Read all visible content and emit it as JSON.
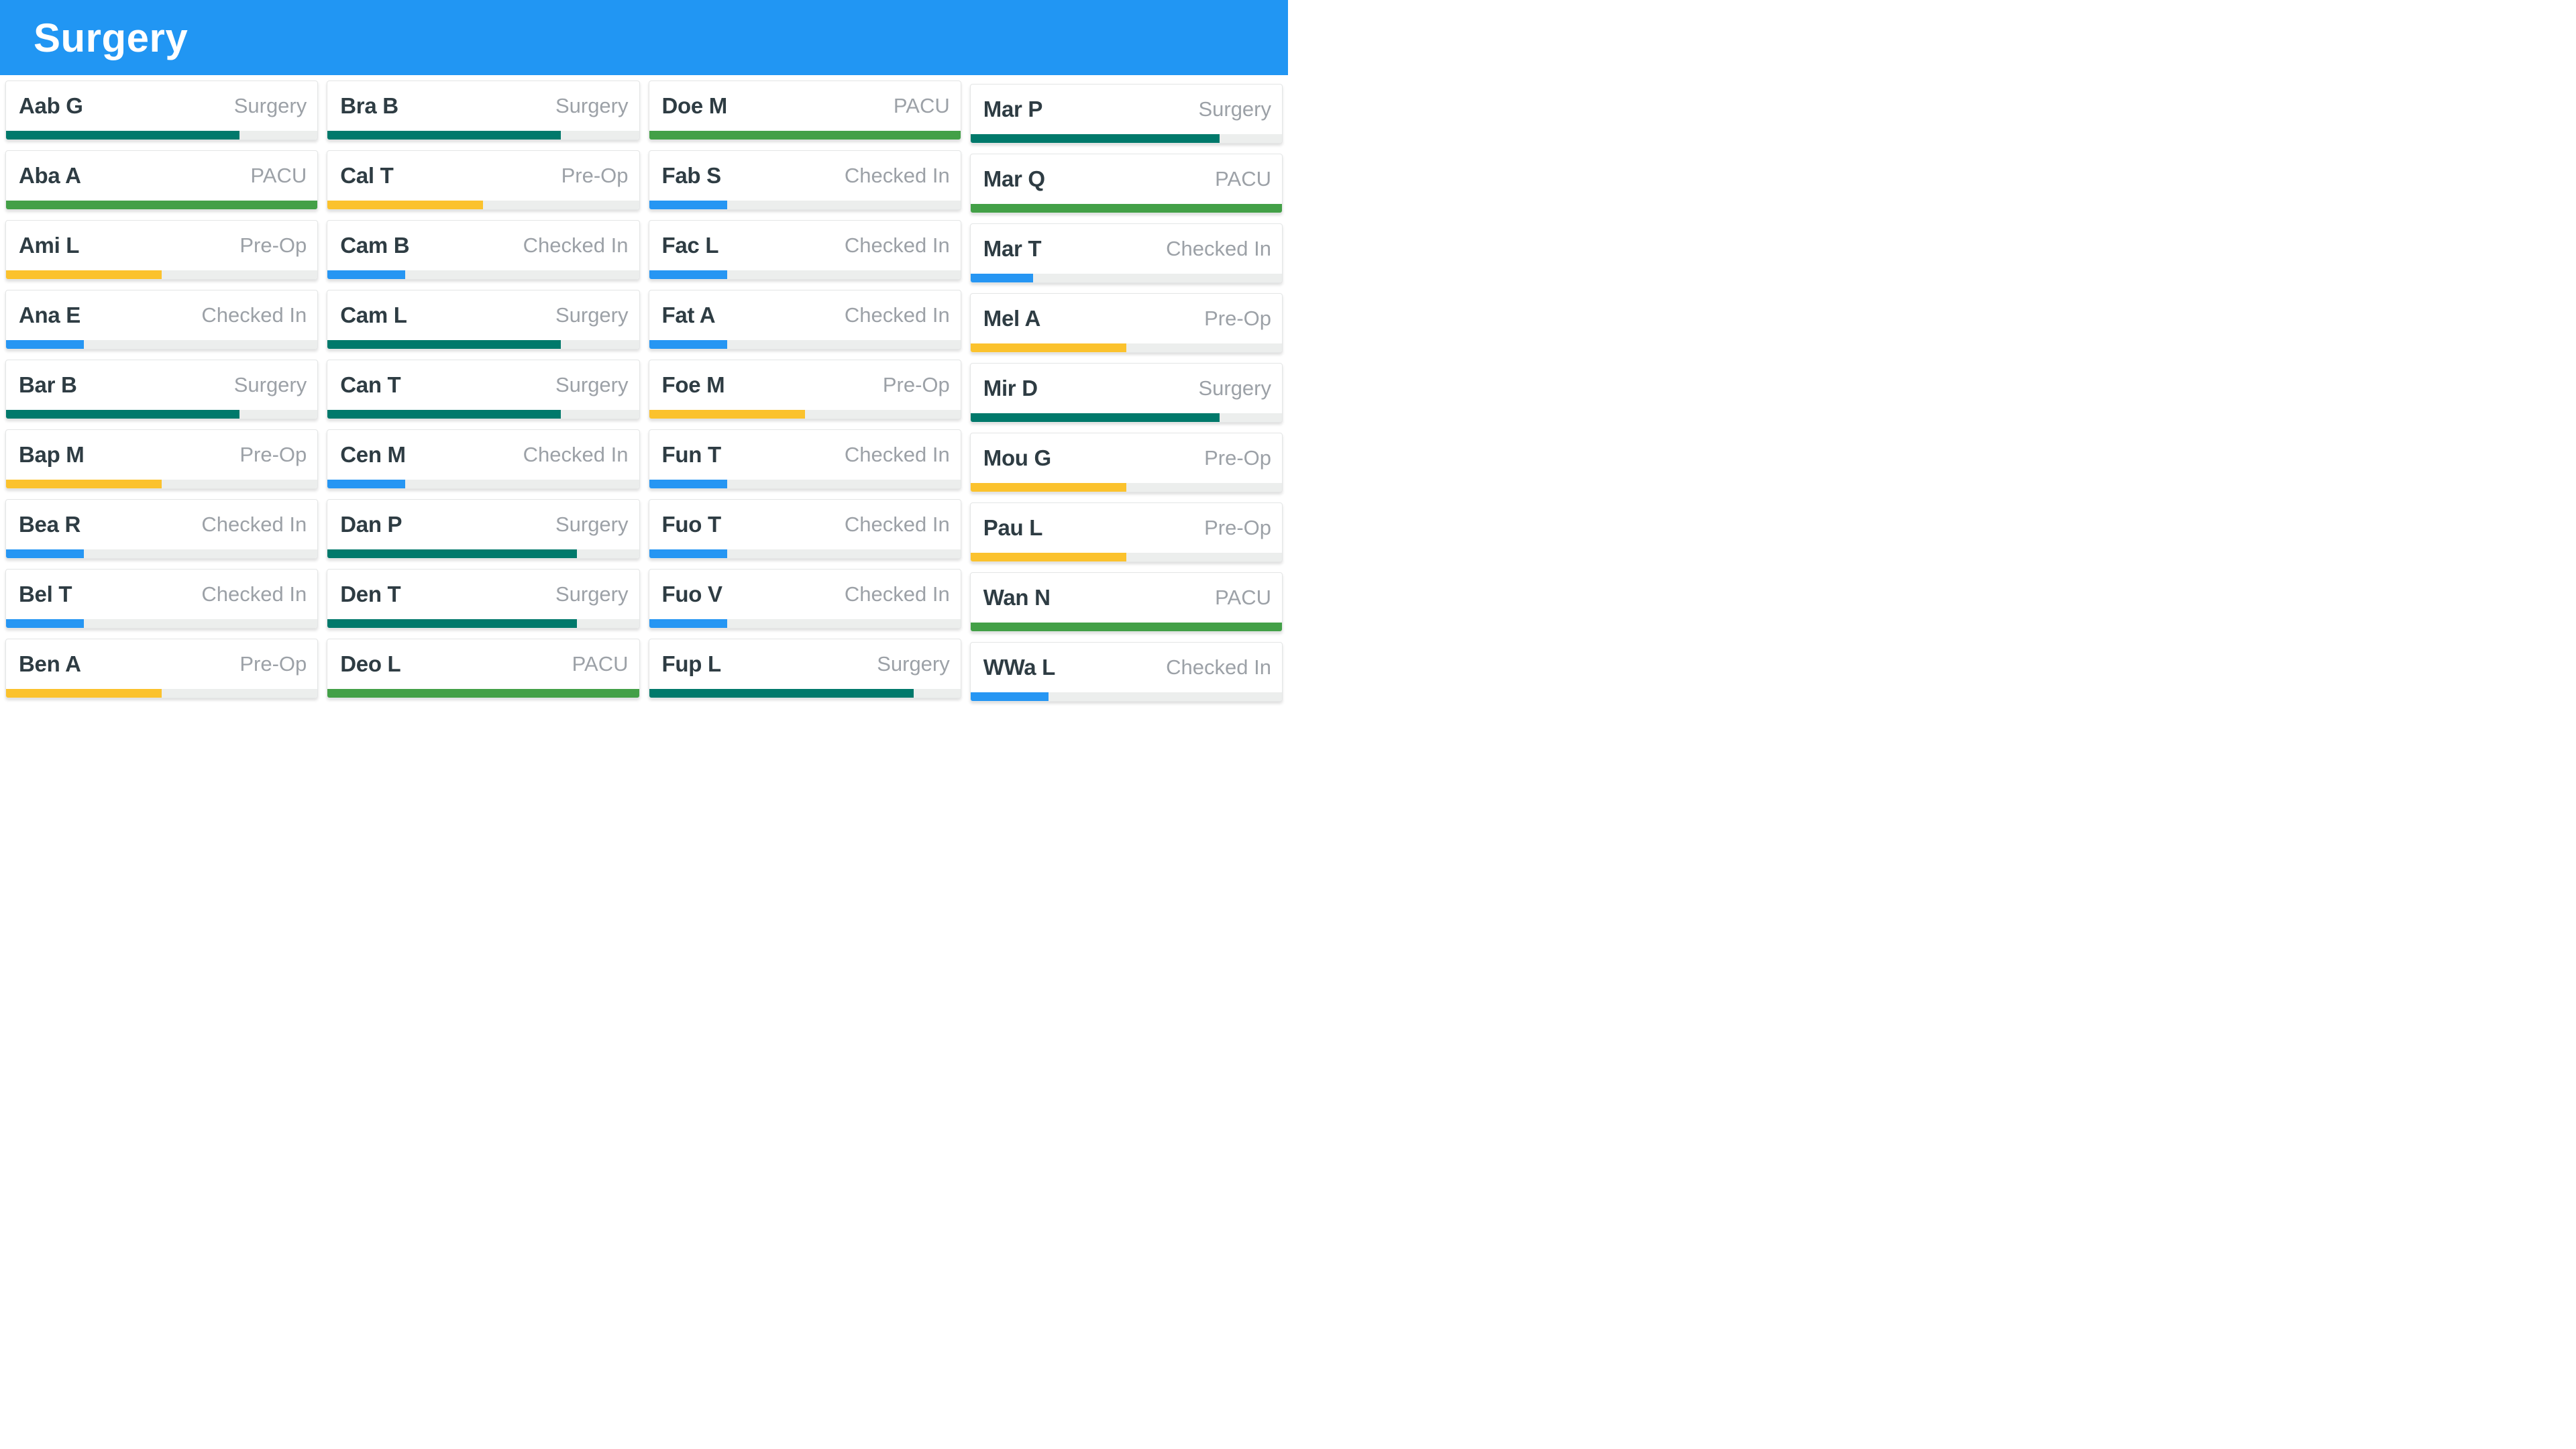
{
  "header": {
    "title": "Surgery"
  },
  "status_colors": {
    "Surgery": "#00796b",
    "PACU": "#43a047",
    "Pre-Op": "#fbc22d",
    "Checked In": "#2696f3"
  },
  "board": {
    "columns": [
      {
        "cards": [
          {
            "name": "Aab G",
            "status": "Surgery",
            "progress": 75
          },
          {
            "name": "Aba A",
            "status": "PACU",
            "progress": 100
          },
          {
            "name": "Ami L",
            "status": "Pre-Op",
            "progress": 50
          },
          {
            "name": "Ana E",
            "status": "Checked In",
            "progress": 25
          },
          {
            "name": "Bar B",
            "status": "Surgery",
            "progress": 75
          },
          {
            "name": "Bap M",
            "status": "Pre-Op",
            "progress": 50
          },
          {
            "name": "Bea R",
            "status": "Checked In",
            "progress": 25
          },
          {
            "name": "Bel T",
            "status": "Checked In",
            "progress": 25
          },
          {
            "name": "Ben A",
            "status": "Pre-Op",
            "progress": 50
          }
        ]
      },
      {
        "cards": [
          {
            "name": "Bra B",
            "status": "Surgery",
            "progress": 75
          },
          {
            "name": "Cal T",
            "status": "Pre-Op",
            "progress": 50
          },
          {
            "name": "Cam B",
            "status": "Checked In",
            "progress": 25
          },
          {
            "name": "Cam L",
            "status": "Surgery",
            "progress": 75
          },
          {
            "name": "Can T",
            "status": "Surgery",
            "progress": 75
          },
          {
            "name": "Cen M",
            "status": "Checked In",
            "progress": 25
          },
          {
            "name": "Dan P",
            "status": "Surgery",
            "progress": 80
          },
          {
            "name": "Den T",
            "status": "Surgery",
            "progress": 80
          },
          {
            "name": "Deo L",
            "status": "PACU",
            "progress": 100
          }
        ]
      },
      {
        "cards": [
          {
            "name": "Doe M",
            "status": "PACU",
            "progress": 100
          },
          {
            "name": "Fab S",
            "status": "Checked In",
            "progress": 25
          },
          {
            "name": "Fac L",
            "status": "Checked In",
            "progress": 25
          },
          {
            "name": "Fat A",
            "status": "Checked In",
            "progress": 25
          },
          {
            "name": "Foe M",
            "status": "Pre-Op",
            "progress": 50
          },
          {
            "name": "Fun T",
            "status": "Checked In",
            "progress": 25
          },
          {
            "name": "Fuo T",
            "status": "Checked In",
            "progress": 25
          },
          {
            "name": "Fuo V",
            "status": "Checked In",
            "progress": 25
          },
          {
            "name": "Fup L",
            "status": "Surgery",
            "progress": 85
          }
        ]
      },
      {
        "cards": [
          {
            "name": "Mar P",
            "status": "Surgery",
            "progress": 80
          },
          {
            "name": "Mar Q",
            "status": "PACU",
            "progress": 100
          },
          {
            "name": "Mar T",
            "status": "Checked In",
            "progress": 20
          },
          {
            "name": "Mel A",
            "status": "Pre-Op",
            "progress": 50
          },
          {
            "name": "Mir D",
            "status": "Surgery",
            "progress": 80
          },
          {
            "name": "Mou G",
            "status": "Pre-Op",
            "progress": 50
          },
          {
            "name": "Pau L",
            "status": "Pre-Op",
            "progress": 50
          },
          {
            "name": "Wan N",
            "status": "PACU",
            "progress": 100
          },
          {
            "name": "WWa L",
            "status": "Checked In",
            "progress": 25
          }
        ]
      }
    ]
  }
}
